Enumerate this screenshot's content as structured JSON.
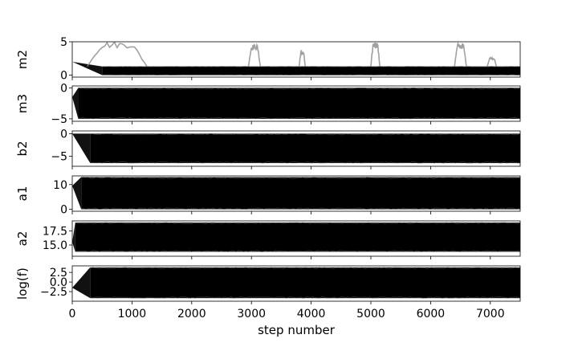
{
  "chart_data": {
    "type": "line",
    "x_axis": {
      "label": "step number",
      "range": [
        0,
        7500
      ],
      "ticks": [
        0,
        1000,
        2000,
        3000,
        4000,
        5000,
        6000,
        7000
      ],
      "tick_labels": [
        "0",
        "1000",
        "2000",
        "3000",
        "4000",
        "5000",
        "6000",
        "7000"
      ]
    },
    "panels": [
      {
        "ylabel": "m2",
        "ylim": [
          -0.3,
          5.0
        ],
        "yticks": [
          0,
          5
        ],
        "ytick_labels": [
          "0",
          "5"
        ],
        "series_summary": {
          "start": 2.0,
          "burn_in_steps": 500,
          "band_low": 0.0,
          "band_high": 1.3,
          "excursions": [
            {
              "x0": 250,
              "x1": 1250,
              "peak": 5.0
            },
            {
              "x0": 2950,
              "x1": 3150,
              "peak": 4.6
            },
            {
              "x0": 3800,
              "x1": 3900,
              "peak": 3.6
            },
            {
              "x0": 5000,
              "x1": 5150,
              "peak": 5.0
            },
            {
              "x0": 6400,
              "x1": 6600,
              "peak": 4.8
            },
            {
              "x0": 6950,
              "x1": 7100,
              "peak": 2.7
            }
          ]
        }
      },
      {
        "ylabel": "m3",
        "ylim": [
          -5.4,
          0.3
        ],
        "yticks": [
          0,
          -5
        ],
        "ytick_labels": [
          "0",
          "−5"
        ],
        "series_summary": {
          "start": -1.5,
          "burn_in_steps": 100,
          "band_low": -5.0,
          "band_high": 0.0
        }
      },
      {
        "ylabel": "b2",
        "ylim": [
          -7.2,
          0.6
        ],
        "yticks": [
          0,
          -5
        ],
        "ytick_labels": [
          "0",
          "−5"
        ],
        "series_summary": {
          "start": 0.0,
          "burn_in_steps": 300,
          "band_low": -6.5,
          "band_high": 0.0
        }
      },
      {
        "ylabel": "a1",
        "ylim": [
          -0.8,
          13.5
        ],
        "yticks": [
          10,
          0
        ],
        "ytick_labels": [
          "10",
          "0"
        ],
        "series_summary": {
          "start": 9.5,
          "burn_in_steps": 150,
          "band_low": 0.0,
          "band_high": 13.0
        }
      },
      {
        "ylabel": "a2",
        "ylim": [
          13.0,
          19.3
        ],
        "yticks": [
          17.5,
          15.0
        ],
        "ytick_labels": [
          "17.5",
          "15.0"
        ],
        "series_summary": {
          "start": 15.5,
          "burn_in_steps": 50,
          "band_low": 13.8,
          "band_high": 19.0
        }
      },
      {
        "ylabel": "log(f)",
        "ylim": [
          -5.0,
          4.2
        ],
        "yticks": [
          2.5,
          0.0,
          -2.5
        ],
        "ytick_labels": [
          "2.5",
          "0.0",
          "−2.5"
        ],
        "series_summary": {
          "start": -1.5,
          "burn_in_steps": 300,
          "band_low": -4.2,
          "band_high": 3.8
        }
      }
    ]
  }
}
